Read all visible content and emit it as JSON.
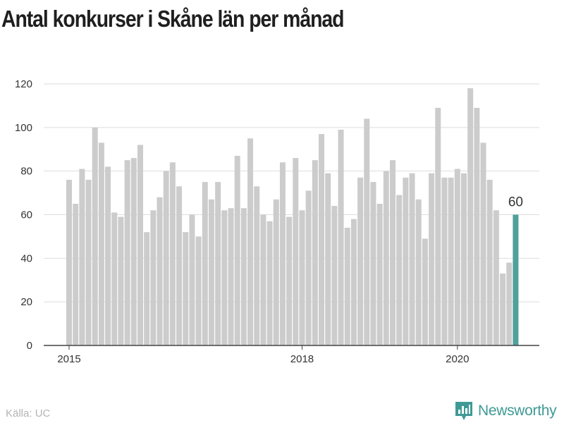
{
  "title": "Antal konkurser i Skåne län per månad",
  "source": "Källa: UC",
  "brand": {
    "name": "Newsworthy",
    "icon": "chart-bubble-icon",
    "color": "#3f9a95"
  },
  "chart_data": {
    "type": "bar",
    "title": "Antal konkurser i Skåne län per månad",
    "xlabel": "",
    "ylabel": "",
    "ylim": [
      0,
      120
    ],
    "yticks": [
      0,
      20,
      40,
      60,
      80,
      100,
      120
    ],
    "xticks": [
      {
        "label": "2015",
        "index": 0
      },
      {
        "label": "2018",
        "index": 36
      },
      {
        "label": "2020",
        "index": 60
      }
    ],
    "bar_color": "#cccccc",
    "highlight_color": "#4fa199",
    "highlight_index": 69,
    "highlight_label": "60",
    "grid": true,
    "values": [
      76,
      65,
      81,
      76,
      100,
      93,
      82,
      61,
      59,
      85,
      86,
      92,
      52,
      62,
      68,
      80,
      84,
      73,
      52,
      60,
      50,
      75,
      67,
      75,
      62,
      63,
      87,
      63,
      95,
      73,
      60,
      57,
      67,
      84,
      59,
      86,
      62,
      71,
      85,
      97,
      79,
      64,
      99,
      54,
      58,
      77,
      104,
      75,
      65,
      80,
      85,
      69,
      77,
      79,
      67,
      49,
      79,
      109,
      77,
      77,
      81,
      79,
      118,
      109,
      93,
      76,
      62,
      33,
      38,
      60
    ]
  }
}
